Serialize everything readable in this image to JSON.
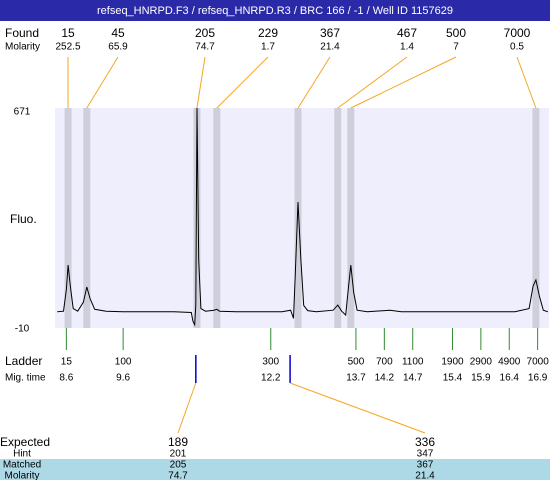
{
  "chart_data": {
    "type": "electropherogram",
    "title": "refseq_HNRPD.F3 / refseq_HNRPD.R3 / BRC 166 / -1 / Well ID 1157629",
    "ylabel": "Fluo.",
    "ylim": [
      -10,
      671
    ],
    "yticks": [
      -10,
      671
    ],
    "xlim": [
      8.4,
      17.1
    ],
    "trace": {
      "x": [
        8.44,
        8.55,
        8.6,
        8.63,
        8.67,
        8.72,
        8.8,
        8.9,
        8.96,
        9.02,
        9.1,
        9.3,
        9.6,
        10.0,
        10.5,
        10.8,
        10.83,
        10.86,
        10.88,
        10.9,
        10.93,
        10.97,
        11.05,
        11.2,
        11.25,
        11.3,
        11.6,
        12.0,
        12.4,
        12.55,
        12.6,
        12.63,
        12.68,
        12.73,
        12.78,
        12.85,
        13.0,
        13.3,
        13.38,
        13.45,
        13.52,
        13.57,
        13.61,
        13.66,
        13.72,
        13.9,
        14.3,
        14.5,
        15.0,
        15.5,
        16.0,
        16.5,
        16.75,
        16.82,
        16.87,
        16.93,
        17.0,
        17.08
      ],
      "y": [
        40,
        42,
        110,
        185,
        120,
        50,
        42,
        70,
        117,
        80,
        48,
        42,
        40,
        40,
        40,
        38,
        10,
        0,
        60,
        671,
        200,
        50,
        42,
        45,
        48,
        42,
        40,
        40,
        40,
        45,
        20,
        150,
        380,
        200,
        60,
        44,
        40,
        45,
        61,
        42,
        30,
        120,
        185,
        100,
        45,
        40,
        45,
        40,
        40,
        40,
        40,
        40,
        50,
        120,
        139,
        90,
        45,
        40
      ]
    },
    "found": {
      "label": "Found",
      "molarity_label": "Molarity",
      "sizes": [
        15,
        45,
        205,
        229,
        367,
        467,
        500,
        7000
      ],
      "molarity": [
        252.5,
        65.9,
        74.7,
        1.7,
        21.4,
        1.4,
        7,
        0.5
      ],
      "times": [
        8.63,
        8.96,
        10.9,
        11.25,
        12.68,
        13.38,
        13.61,
        16.87
      ]
    },
    "ladder": {
      "label": "Ladder",
      "time_label": "Mig. time",
      "sizes": [
        15,
        100,
        300,
        500,
        700,
        1100,
        1900,
        2900,
        4900,
        7000
      ],
      "times": [
        8.6,
        9.6,
        12.2,
        13.7,
        14.2,
        14.7,
        15.4,
        15.9,
        16.4,
        16.9
      ]
    },
    "expected": {
      "label": "Expected",
      "hint_label": "Hint",
      "matched_label": "Matched",
      "molarity_label": "Molarity",
      "sizes": [
        189,
        336
      ],
      "hint": [
        201,
        347
      ],
      "matched": [
        205,
        367
      ],
      "molarity": [
        74.7,
        21.4
      ],
      "times": [
        10.88,
        12.54
      ]
    }
  }
}
